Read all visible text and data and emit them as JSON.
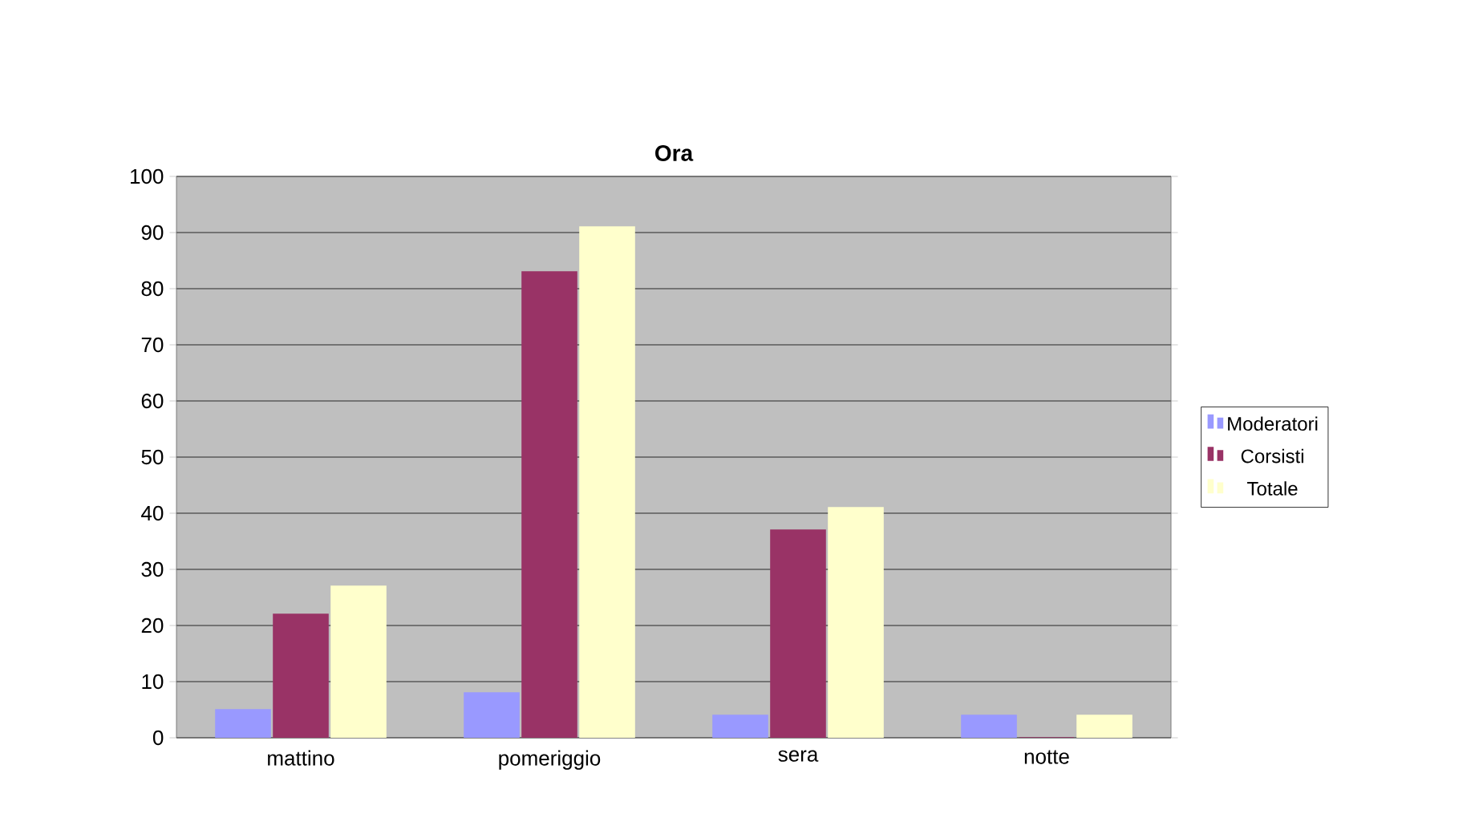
{
  "chart_data": {
    "type": "bar",
    "title": "Ora",
    "categories": [
      "mattino",
      "pomeriggio",
      "sera",
      "notte"
    ],
    "series": [
      {
        "name": "Moderatori",
        "color": "#9999ff",
        "values": [
          5,
          8,
          4,
          4
        ]
      },
      {
        "name": "Corsisti",
        "color": "#993366",
        "values": [
          22,
          83,
          37,
          0
        ]
      },
      {
        "name": "Totale",
        "color": "#ffffcc",
        "values": [
          27,
          91,
          41,
          4
        ]
      }
    ],
    "ylim": [
      0,
      100
    ],
    "yticks": [
      0,
      10,
      20,
      30,
      40,
      50,
      60,
      70,
      80,
      90,
      100
    ],
    "grid": "y",
    "legend": "right"
  }
}
